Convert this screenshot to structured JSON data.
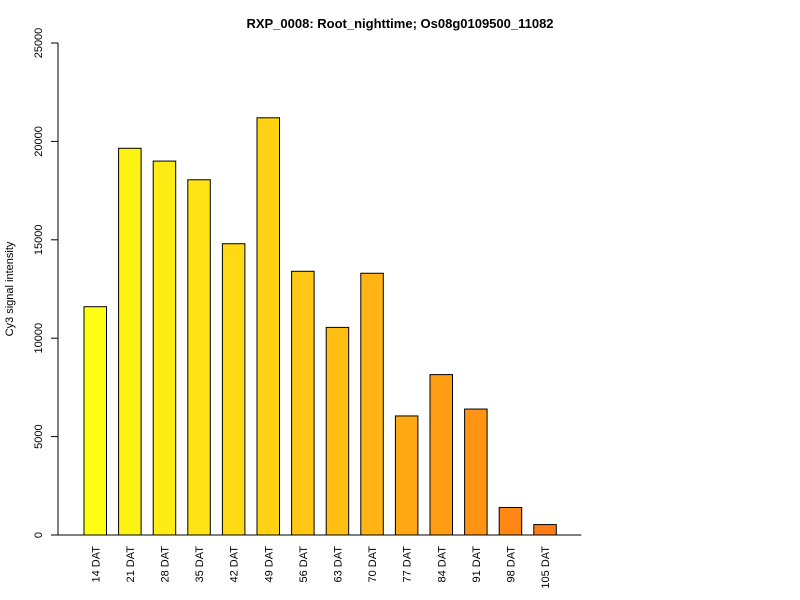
{
  "chart_data": {
    "type": "bar",
    "title": "RXP_0008: Root_nighttime; Os08g0109500_11082",
    "xlabel": "",
    "ylabel": "Cy3 signal intensity",
    "ylim": [
      0,
      25000
    ],
    "yticks": [
      0,
      5000,
      10000,
      15000,
      20000,
      25000
    ],
    "grid": false,
    "legend": "none",
    "categories": [
      "14 DAT",
      "21 DAT",
      "28 DAT",
      "35 DAT",
      "42 DAT",
      "49 DAT",
      "56 DAT",
      "63 DAT",
      "70 DAT",
      "77 DAT",
      "84 DAT",
      "91 DAT",
      "98 DAT",
      "105 DAT"
    ],
    "values": [
      11600,
      19650,
      19000,
      18050,
      14800,
      21200,
      13400,
      10550,
      13300,
      6050,
      8150,
      6400,
      1400,
      530
    ],
    "colors": [
      "#FFFF14",
      "#FFF314",
      "#FFEC14",
      "#FFE314",
      "#FFDA14",
      "#FFD214",
      "#FFC814",
      "#FFBE14",
      "#FFB314",
      "#FFA814",
      "#FF9E14",
      "#FF9314",
      "#FF8814",
      "#FF7D14"
    ],
    "bar_stroke": "#000000",
    "axis_color": "#000000"
  }
}
